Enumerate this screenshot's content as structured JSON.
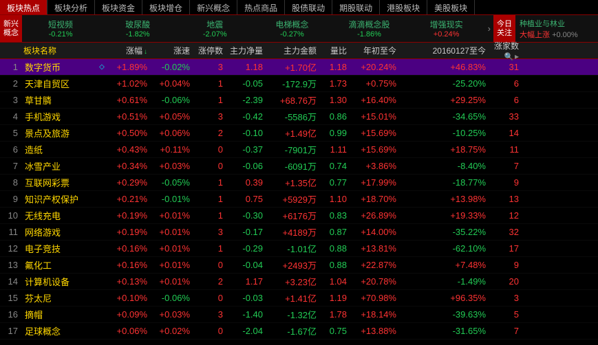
{
  "tabs": [
    "板块热点",
    "板块分析",
    "板块资金",
    "板块增仓",
    "新兴概念",
    "热点商品",
    "股债联动",
    "期股联动",
    "港股板块",
    "美股板块"
  ],
  "active_tab": 0,
  "subbar_left": "新兴概念",
  "subbar_items": [
    {
      "name": "短视频",
      "val": "-0.21%",
      "cls": "green"
    },
    {
      "name": "玻尿酸",
      "val": "-1.82%",
      "cls": "green"
    },
    {
      "name": "地震",
      "val": "-2.07%",
      "cls": "green"
    },
    {
      "name": "电梯概念",
      "val": "-0.27%",
      "cls": "green"
    },
    {
      "name": "滴滴概念股",
      "val": "-1.86%",
      "cls": "green"
    },
    {
      "name": "增强现实",
      "val": "+0.24%",
      "cls": "red"
    }
  ],
  "today_focus": "今日关注",
  "news_line1": "种植业与林业",
  "news_line2_a": "大幅上涨",
  "news_line2_b": "+0.00%",
  "headers": {
    "idx": "",
    "name": "板块名称",
    "change": "涨幅",
    "speed": "涨速",
    "stop": "涨停数",
    "net": "主力净量",
    "amt": "主力金额",
    "ratio": "量比",
    "ytd": "年初至今",
    "since": "20160127至今",
    "up": "涨家数"
  },
  "rows": [
    {
      "idx": 1,
      "name": "数字货币",
      "dot": "◇",
      "change": "+1.89%",
      "cc": "red",
      "speed": "-0.02%",
      "sc": "green",
      "stop": "3",
      "net": "1.18",
      "nc": "red",
      "amt": "+1.70亿",
      "ac": "red",
      "ratio": "1.18",
      "rc": "red",
      "ytd": "+20.24%",
      "yc": "red",
      "since": "+46.83%",
      "sic": "red",
      "up": "31",
      "selected": true
    },
    {
      "idx": 2,
      "name": "天津自贸区",
      "dot": "",
      "change": "+1.02%",
      "cc": "red",
      "speed": "+0.04%",
      "sc": "red",
      "stop": "1",
      "net": "-0.05",
      "nc": "green",
      "amt": "-172.9万",
      "ac": "green",
      "ratio": "1.73",
      "rc": "red",
      "ytd": "+0.75%",
      "yc": "red",
      "since": "-25.20%",
      "sic": "green",
      "up": "6"
    },
    {
      "idx": 3,
      "name": "草甘膦",
      "dot": "",
      "change": "+0.61%",
      "cc": "red",
      "speed": "-0.06%",
      "sc": "green",
      "stop": "1",
      "net": "-2.39",
      "nc": "green",
      "amt": "+68.76万",
      "ac": "red",
      "ratio": "1.30",
      "rc": "red",
      "ytd": "+16.40%",
      "yc": "red",
      "since": "+29.25%",
      "sic": "red",
      "up": "6"
    },
    {
      "idx": 4,
      "name": "手机游戏",
      "dot": "",
      "change": "+0.51%",
      "cc": "red",
      "speed": "+0.05%",
      "sc": "red",
      "stop": "3",
      "net": "-0.42",
      "nc": "green",
      "amt": "-5586万",
      "ac": "green",
      "ratio": "0.86",
      "rc": "green",
      "ytd": "+15.01%",
      "yc": "red",
      "since": "-34.65%",
      "sic": "green",
      "up": "33"
    },
    {
      "idx": 5,
      "name": "景点及旅游",
      "dot": "",
      "change": "+0.50%",
      "cc": "red",
      "speed": "+0.06%",
      "sc": "red",
      "stop": "2",
      "net": "-0.10",
      "nc": "green",
      "amt": "+1.49亿",
      "ac": "red",
      "ratio": "0.99",
      "rc": "green",
      "ytd": "+15.69%",
      "yc": "red",
      "since": "-10.25%",
      "sic": "green",
      "up": "14"
    },
    {
      "idx": 6,
      "name": "造纸",
      "dot": "",
      "change": "+0.43%",
      "cc": "red",
      "speed": "+0.11%",
      "sc": "red",
      "stop": "0",
      "net": "-0.37",
      "nc": "green",
      "amt": "-7901万",
      "ac": "green",
      "ratio": "1.11",
      "rc": "red",
      "ytd": "+15.69%",
      "yc": "red",
      "since": "+18.75%",
      "sic": "red",
      "up": "11"
    },
    {
      "idx": 7,
      "name": "冰雪产业",
      "dot": "",
      "change": "+0.34%",
      "cc": "red",
      "speed": "+0.03%",
      "sc": "red",
      "stop": "0",
      "net": "-0.06",
      "nc": "green",
      "amt": "-6091万",
      "ac": "green",
      "ratio": "0.74",
      "rc": "green",
      "ytd": "+3.86%",
      "yc": "red",
      "since": "-8.40%",
      "sic": "green",
      "up": "7"
    },
    {
      "idx": 8,
      "name": "互联网彩票",
      "dot": "",
      "change": "+0.29%",
      "cc": "red",
      "speed": "-0.05%",
      "sc": "green",
      "stop": "1",
      "net": "0.39",
      "nc": "red",
      "amt": "+1.35亿",
      "ac": "red",
      "ratio": "0.77",
      "rc": "green",
      "ytd": "+17.99%",
      "yc": "red",
      "since": "-18.77%",
      "sic": "green",
      "up": "9"
    },
    {
      "idx": 9,
      "name": "知识产权保护",
      "dot": "",
      "change": "+0.21%",
      "cc": "red",
      "speed": "-0.01%",
      "sc": "green",
      "stop": "1",
      "net": "0.75",
      "nc": "red",
      "amt": "+5929万",
      "ac": "red",
      "ratio": "1.10",
      "rc": "red",
      "ytd": "+18.70%",
      "yc": "red",
      "since": "+13.98%",
      "sic": "red",
      "up": "13"
    },
    {
      "idx": 10,
      "name": "无线充电",
      "dot": "",
      "change": "+0.19%",
      "cc": "red",
      "speed": "+0.01%",
      "sc": "red",
      "stop": "1",
      "net": "-0.30",
      "nc": "green",
      "amt": "+6176万",
      "ac": "red",
      "ratio": "0.83",
      "rc": "green",
      "ytd": "+26.89%",
      "yc": "red",
      "since": "+19.33%",
      "sic": "red",
      "up": "12"
    },
    {
      "idx": 11,
      "name": "网络游戏",
      "dot": "",
      "change": "+0.19%",
      "cc": "red",
      "speed": "+0.01%",
      "sc": "red",
      "stop": "3",
      "net": "-0.17",
      "nc": "green",
      "amt": "+4189万",
      "ac": "red",
      "ratio": "0.87",
      "rc": "green",
      "ytd": "+14.00%",
      "yc": "red",
      "since": "-35.22%",
      "sic": "green",
      "up": "32"
    },
    {
      "idx": 12,
      "name": "电子竞技",
      "dot": "",
      "change": "+0.16%",
      "cc": "red",
      "speed": "+0.01%",
      "sc": "red",
      "stop": "1",
      "net": "-0.29",
      "nc": "green",
      "amt": "-1.01亿",
      "ac": "green",
      "ratio": "0.88",
      "rc": "green",
      "ytd": "+13.81%",
      "yc": "red",
      "since": "-62.10%",
      "sic": "green",
      "up": "17"
    },
    {
      "idx": 13,
      "name": "氟化工",
      "dot": "",
      "change": "+0.16%",
      "cc": "red",
      "speed": "+0.01%",
      "sc": "red",
      "stop": "0",
      "net": "-0.04",
      "nc": "green",
      "amt": "+2493万",
      "ac": "red",
      "ratio": "0.88",
      "rc": "green",
      "ytd": "+22.87%",
      "yc": "red",
      "since": "+7.48%",
      "sic": "red",
      "up": "9"
    },
    {
      "idx": 14,
      "name": "计算机设备",
      "dot": "",
      "change": "+0.13%",
      "cc": "red",
      "speed": "+0.01%",
      "sc": "red",
      "stop": "2",
      "net": "1.17",
      "nc": "red",
      "amt": "+3.23亿",
      "ac": "red",
      "ratio": "1.04",
      "rc": "red",
      "ytd": "+20.78%",
      "yc": "red",
      "since": "-1.49%",
      "sic": "green",
      "up": "20"
    },
    {
      "idx": 15,
      "name": "芬太尼",
      "dot": "",
      "change": "+0.10%",
      "cc": "red",
      "speed": "-0.06%",
      "sc": "green",
      "stop": "0",
      "net": "-0.03",
      "nc": "green",
      "amt": "+1.41亿",
      "ac": "red",
      "ratio": "1.19",
      "rc": "red",
      "ytd": "+70.98%",
      "yc": "red",
      "since": "+96.35%",
      "sic": "red",
      "up": "3"
    },
    {
      "idx": 16,
      "name": "摘帽",
      "dot": "",
      "change": "+0.09%",
      "cc": "red",
      "speed": "+0.03%",
      "sc": "red",
      "stop": "3",
      "net": "-1.40",
      "nc": "green",
      "amt": "-1.32亿",
      "ac": "green",
      "ratio": "1.78",
      "rc": "red",
      "ytd": "+18.14%",
      "yc": "red",
      "since": "-39.63%",
      "sic": "green",
      "up": "5"
    },
    {
      "idx": 17,
      "name": "足球概念",
      "dot": "",
      "change": "+0.06%",
      "cc": "red",
      "speed": "+0.02%",
      "sc": "red",
      "stop": "0",
      "net": "-2.04",
      "nc": "green",
      "amt": "-1.67亿",
      "ac": "green",
      "ratio": "0.75",
      "rc": "green",
      "ytd": "+13.88%",
      "yc": "red",
      "since": "-31.65%",
      "sic": "green",
      "up": "7"
    }
  ]
}
